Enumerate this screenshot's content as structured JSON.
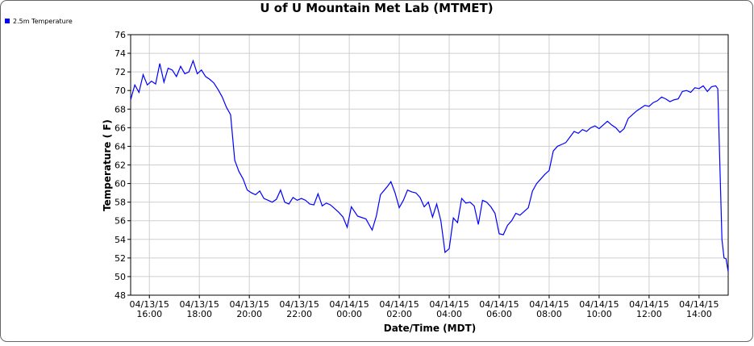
{
  "chart_data": {
    "type": "line",
    "title": "U of U Mountain Met Lab (MTMET)",
    "xlabel": "Date/Time (MDT)",
    "ylabel": "Temperature ( F)",
    "legend": "top-left",
    "grid": true,
    "xlim": [
      "04/13/15 15:15",
      "04/14/15 15:10"
    ],
    "xticks": [
      {
        "value": "04/13/15 16:00",
        "label": [
          "04/13/15",
          "16:00"
        ]
      },
      {
        "value": "04/13/15 18:00",
        "label": [
          "04/13/15",
          "18:00"
        ]
      },
      {
        "value": "04/13/15 20:00",
        "label": [
          "04/13/15",
          "20:00"
        ]
      },
      {
        "value": "04/13/15 22:00",
        "label": [
          "04/13/15",
          "22:00"
        ]
      },
      {
        "value": "04/14/15 00:00",
        "label": [
          "04/14/15",
          "00:00"
        ]
      },
      {
        "value": "04/14/15 02:00",
        "label": [
          "04/14/15",
          "02:00"
        ]
      },
      {
        "value": "04/14/15 04:00",
        "label": [
          "04/14/15",
          "04:00"
        ]
      },
      {
        "value": "04/14/15 06:00",
        "label": [
          "04/14/15",
          "06:00"
        ]
      },
      {
        "value": "04/14/15 08:00",
        "label": [
          "04/14/15",
          "08:00"
        ]
      },
      {
        "value": "04/14/15 10:00",
        "label": [
          "04/14/15",
          "10:00"
        ]
      },
      {
        "value": "04/14/15 12:00",
        "label": [
          "04/14/15",
          "12:00"
        ]
      },
      {
        "value": "04/14/15 14:00",
        "label": [
          "04/14/15",
          "14:00"
        ]
      }
    ],
    "ylim": [
      48,
      76
    ],
    "yticks": [
      48,
      50,
      52,
      54,
      56,
      58,
      60,
      62,
      64,
      66,
      68,
      70,
      72,
      74,
      76
    ],
    "x": [
      "04/13/15 15:15",
      "04/13/15 15:25",
      "04/13/15 15:35",
      "04/13/15 15:45",
      "04/13/15 15:55",
      "04/13/15 16:05",
      "04/13/15 16:15",
      "04/13/15 16:25",
      "04/13/15 16:35",
      "04/13/15 16:45",
      "04/13/15 16:55",
      "04/13/15 17:05",
      "04/13/15 17:15",
      "04/13/15 17:25",
      "04/13/15 17:35",
      "04/13/15 17:45",
      "04/13/15 17:55",
      "04/13/15 18:05",
      "04/13/15 18:15",
      "04/13/15 18:25",
      "04/13/15 18:35",
      "04/13/15 18:45",
      "04/13/15 18:55",
      "04/13/15 19:05",
      "04/13/15 19:15",
      "04/13/15 19:25",
      "04/13/15 19:35",
      "04/13/15 19:45",
      "04/13/15 19:55",
      "04/13/15 20:05",
      "04/13/15 20:15",
      "04/13/15 20:25",
      "04/13/15 20:35",
      "04/13/15 20:45",
      "04/13/15 20:55",
      "04/13/15 21:05",
      "04/13/15 21:15",
      "04/13/15 21:25",
      "04/13/15 21:35",
      "04/13/15 21:45",
      "04/13/15 21:55",
      "04/13/15 22:05",
      "04/13/15 22:15",
      "04/13/15 22:25",
      "04/13/15 22:35",
      "04/13/15 22:45",
      "04/13/15 22:55",
      "04/13/15 23:05",
      "04/13/15 23:15",
      "04/13/15 23:25",
      "04/13/15 23:35",
      "04/13/15 23:45",
      "04/13/15 23:55",
      "04/14/15 00:05",
      "04/14/15 00:20",
      "04/14/15 00:40",
      "04/14/15 00:55",
      "04/14/15 01:05",
      "04/14/15 01:15",
      "04/14/15 01:30",
      "04/14/15 01:40",
      "04/14/15 01:50",
      "04/14/15 02:00",
      "04/14/15 02:10",
      "04/14/15 02:20",
      "04/14/15 02:30",
      "04/14/15 02:40",
      "04/14/15 02:50",
      "04/14/15 03:00",
      "04/14/15 03:10",
      "04/14/15 03:20",
      "04/14/15 03:30",
      "04/14/15 03:40",
      "04/14/15 03:50",
      "04/14/15 04:00",
      "04/14/15 04:10",
      "04/14/15 04:20",
      "04/14/15 04:30",
      "04/14/15 04:40",
      "04/14/15 04:50",
      "04/14/15 05:00",
      "04/14/15 05:10",
      "04/14/15 05:20",
      "04/14/15 05:30",
      "04/14/15 05:40",
      "04/14/15 05:50",
      "04/14/15 06:00",
      "04/14/15 06:10",
      "04/14/15 06:20",
      "04/14/15 06:30",
      "04/14/15 06:40",
      "04/14/15 06:50",
      "04/14/15 07:00",
      "04/14/15 07:10",
      "04/14/15 07:20",
      "04/14/15 07:30",
      "04/14/15 07:40",
      "04/14/15 07:50",
      "04/14/15 08:00",
      "04/14/15 08:10",
      "04/14/15 08:20",
      "04/14/15 08:30",
      "04/14/15 08:40",
      "04/14/15 08:50",
      "04/14/15 09:00",
      "04/14/15 09:10",
      "04/14/15 09:20",
      "04/14/15 09:30",
      "04/14/15 09:40",
      "04/14/15 09:50",
      "04/14/15 10:00",
      "04/14/15 10:10",
      "04/14/15 10:20",
      "04/14/15 10:30",
      "04/14/15 10:40",
      "04/14/15 10:50",
      "04/14/15 11:00",
      "04/14/15 11:10",
      "04/14/15 11:20",
      "04/14/15 11:30",
      "04/14/15 11:40",
      "04/14/15 11:50",
      "04/14/15 12:00",
      "04/14/15 12:10",
      "04/14/15 12:20",
      "04/14/15 12:30",
      "04/14/15 12:40",
      "04/14/15 12:50",
      "04/14/15 13:00",
      "04/14/15 13:10",
      "04/14/15 13:20",
      "04/14/15 13:30",
      "04/14/15 13:40",
      "04/14/15 13:50",
      "04/14/15 14:00",
      "04/14/15 14:10",
      "04/14/15 14:20",
      "04/14/15 14:30",
      "04/14/15 14:40",
      "04/14/15 14:45",
      "04/14/15 14:50",
      "04/14/15 14:55",
      "04/14/15 15:00",
      "04/14/15 15:05",
      "04/14/15 15:10"
    ],
    "series": [
      {
        "name": "2.5m Temperature",
        "color": "#0000ff",
        "values": [
          69.0,
          70.6,
          69.8,
          71.7,
          70.6,
          71.0,
          70.7,
          72.9,
          70.9,
          72.4,
          72.2,
          71.5,
          72.6,
          71.8,
          72.0,
          73.2,
          71.8,
          72.2,
          71.5,
          71.2,
          70.8,
          70.1,
          69.3,
          68.2,
          67.4,
          62.5,
          61.3,
          60.5,
          59.3,
          59.0,
          58.8,
          59.2,
          58.4,
          58.2,
          58.0,
          58.3,
          59.3,
          58.0,
          57.8,
          58.5,
          58.2,
          58.4,
          58.2,
          57.8,
          57.7,
          58.9,
          57.6,
          57.9,
          57.7,
          57.3,
          56.9,
          56.4,
          55.3,
          57.5,
          56.5,
          56.2,
          55.0,
          56.5,
          58.8,
          59.6,
          60.2,
          59.0,
          57.4,
          58.2,
          59.3,
          59.1,
          59.0,
          58.5,
          57.5,
          58.0,
          56.4,
          57.8,
          56.0,
          52.6,
          53.0,
          56.3,
          55.8,
          58.4,
          57.9,
          58.0,
          57.6,
          55.6,
          58.2,
          58.0,
          57.5,
          56.8,
          54.6,
          54.5,
          55.5,
          56.0,
          56.8,
          56.6,
          57.0,
          57.4,
          59.2,
          60.0,
          60.5,
          61.0,
          61.4,
          63.5,
          64.0,
          64.2,
          64.4,
          65.0,
          65.6,
          65.4,
          65.8,
          65.6,
          66.0,
          66.2,
          65.9,
          66.3,
          66.7,
          66.3,
          66.0,
          65.5,
          65.9,
          67.0,
          67.4,
          67.8,
          68.1,
          68.4,
          68.3,
          68.7,
          68.9,
          69.3,
          69.1,
          68.8,
          69.0,
          69.1,
          69.9,
          70.0,
          69.8,
          70.3,
          70.2,
          70.5,
          69.9,
          70.4,
          70.5,
          70.2,
          62.0,
          54.0,
          52.0,
          51.9,
          50.5
        ]
      }
    ]
  }
}
